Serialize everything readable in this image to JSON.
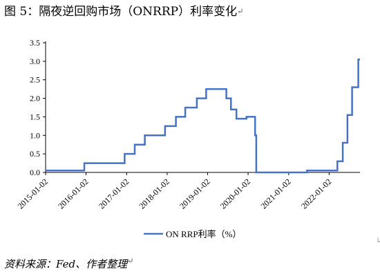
{
  "header": {
    "figure_title": "图 5：隔夜逆回购市场（ONRRP）利率变化",
    "para_mark": "↵"
  },
  "footer": {
    "source": "资料来源：Fed、作者整理",
    "para_mark": "↵"
  },
  "chart_data": {
    "type": "line",
    "step": true,
    "title": "",
    "xlabel": "",
    "ylabel": "",
    "x_ticks": [
      "2015-01-02",
      "2016-01-02",
      "2017-01-02",
      "2018-01-02",
      "2019-01-02",
      "2020-01-02",
      "2021-01-02",
      "2022-01-02"
    ],
    "ylim": [
      0,
      3.5
    ],
    "y_ticks": [
      "0.0",
      "0.5",
      "1.0",
      "1.5",
      "2.0",
      "2.5",
      "3.0",
      "3.5"
    ],
    "grid": false,
    "legend_position": "bottom",
    "series": [
      {
        "name": "ON RRP利率（%）",
        "color": "#4472C4",
        "points": [
          [
            "2015-01-02",
            0.05
          ],
          [
            "2015-12-17",
            0.25
          ],
          [
            "2016-12-15",
            0.5
          ],
          [
            "2017-03-16",
            0.75
          ],
          [
            "2017-06-15",
            1.0
          ],
          [
            "2017-12-14",
            1.25
          ],
          [
            "2018-03-22",
            1.5
          ],
          [
            "2018-06-14",
            1.75
          ],
          [
            "2018-09-27",
            2.0
          ],
          [
            "2018-12-20",
            2.25
          ],
          [
            "2019-05-02",
            2.25
          ],
          [
            "2019-05-02",
            2.25
          ],
          [
            "2019-06-20",
            2.0
          ],
          [
            "2019-08-01",
            1.7
          ],
          [
            "2019-09-19",
            1.45
          ],
          [
            "2019-12-19",
            1.45
          ],
          [
            "2019-12-19",
            1.5
          ],
          [
            "2020-03-04",
            1.5
          ],
          [
            "2020-03-05",
            1.0
          ],
          [
            "2020-03-16",
            0.0
          ],
          [
            "2021-06-17",
            0.0
          ],
          [
            "2021-06-17",
            0.05
          ],
          [
            "2022-03-17",
            0.05
          ],
          [
            "2022-03-17",
            0.3
          ],
          [
            "2022-05-05",
            0.8
          ],
          [
            "2022-06-16",
            1.55
          ],
          [
            "2022-07-28",
            2.3
          ],
          [
            "2022-09-22",
            3.05
          ],
          [
            "2022-10-07",
            3.05
          ]
        ]
      }
    ]
  }
}
